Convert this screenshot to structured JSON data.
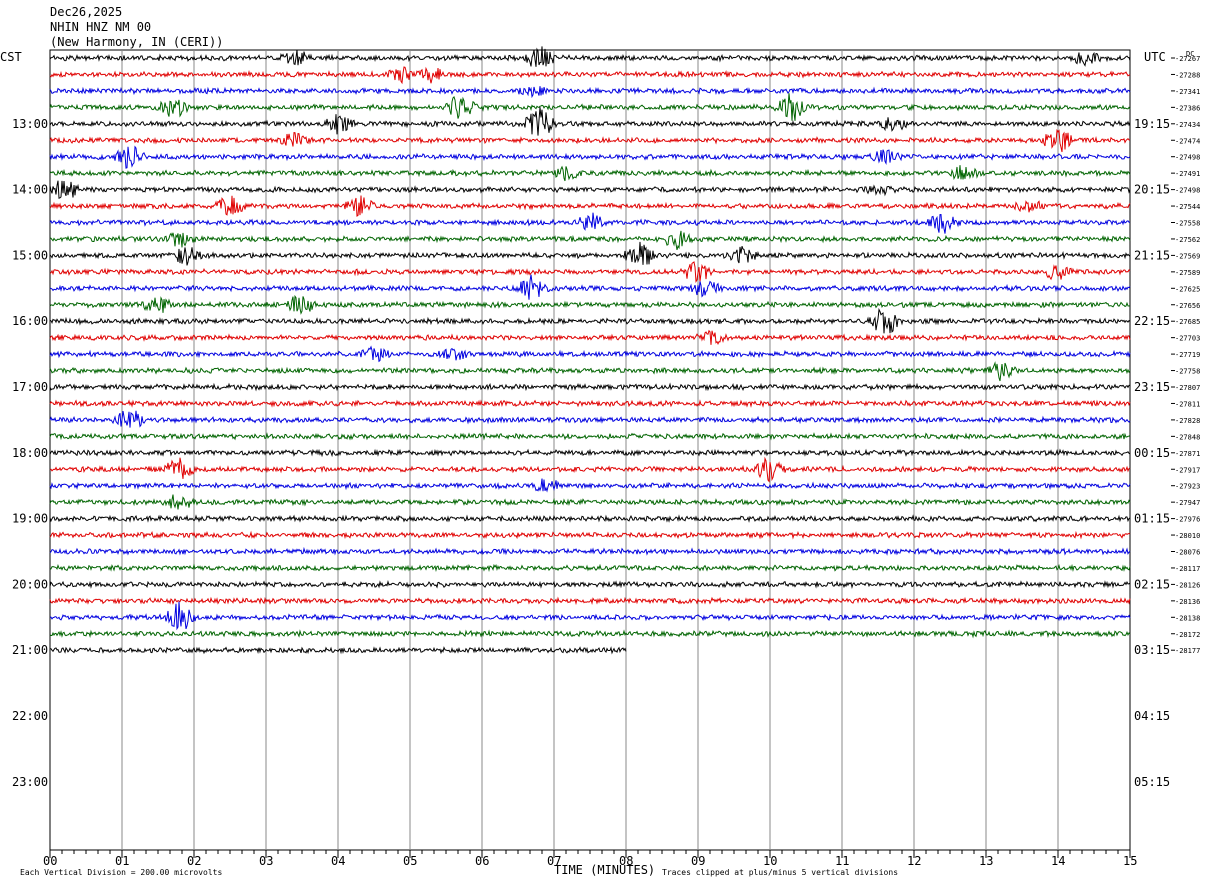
{
  "header": {
    "date": "Dec26,2025",
    "station": "NHIN HNZ NM 00",
    "location": "(New Harmony, IN (CERI))",
    "left_tz": "CST",
    "right_tz": "UTC",
    "dc_label": "DC"
  },
  "chart_data": {
    "type": "line",
    "title": "",
    "xlabel": "TIME (MINUTES)",
    "x_ticks": [
      "00",
      "01",
      "02",
      "03",
      "04",
      "05",
      "06",
      "07",
      "08",
      "09",
      "10",
      "11",
      "12",
      "13",
      "14",
      "15"
    ],
    "xlim": [
      0,
      15
    ],
    "left_time_labels": [
      "13:00",
      "14:00",
      "15:00",
      "16:00",
      "17:00",
      "18:00",
      "19:00",
      "20:00",
      "21:00",
      "22:00",
      "23:00"
    ],
    "right_time_labels": [
      "19:15",
      "20:15",
      "21:15",
      "22:15",
      "23:15",
      "00:15",
      "01:15",
      "02:15",
      "03:15",
      "04:15",
      "05:15"
    ],
    "dc_offsets": [
      "-27267",
      "-27288",
      "-27341",
      "-27386",
      "-27434",
      "-27474",
      "-27498",
      "-27491",
      "-27498",
      "-27544",
      "-27558",
      "-27562",
      "-27569",
      "-27589",
      "-27625",
      "-27656",
      "-27685",
      "-27703",
      "-27719",
      "-27758",
      "-27807",
      "-27811",
      "-27828",
      "-27848",
      "-27871",
      "-27917",
      "-27923",
      "-27947",
      "-27976",
      "-28010",
      "-28076",
      "-28117",
      "-28126",
      "-28136",
      "-28138",
      "-28172",
      "-28177"
    ],
    "trace_colors": [
      "#000000",
      "#e00000",
      "#0000e0",
      "#006400"
    ],
    "trace_count": 37,
    "last_trace_end_minute": 8.0,
    "footer_left": "Each Vertical Division =  200.00 microvolts",
    "footer_right": "Traces clipped at plus/minus 5 vertical divisions"
  }
}
